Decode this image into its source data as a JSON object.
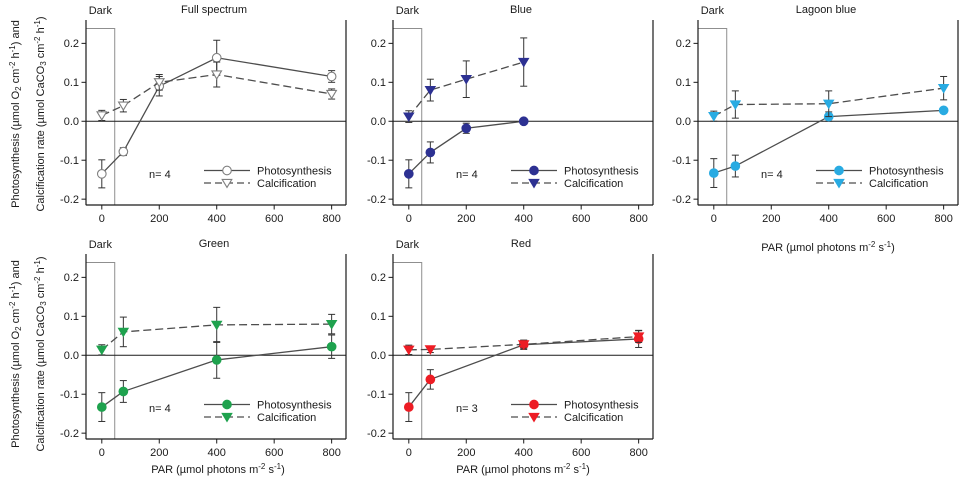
{
  "chart_data": {
    "type": "line",
    "grid": false,
    "x_ticks": [
      0,
      200,
      400,
      600,
      800
    ],
    "y_ticks": [
      "-0.2",
      "-0.1",
      "0.0",
      "0.1",
      "0.2"
    ],
    "xlim": [
      -55,
      850
    ],
    "ylim": [
      -0.215,
      0.26
    ],
    "dark_box": {
      "label": "Dark",
      "x_end": 45
    },
    "colors": {
      "axis": "#1a1a1a",
      "line": "#4d4d4d",
      "error": "#333333",
      "dark_box": "#8f8f8f",
      "full_spectrum_marker": "#7f7f7f",
      "blue": "#2d3192",
      "lagoon_blue": "#29abe2",
      "green": "#1fa24e",
      "red": "#ed1c24"
    },
    "xlabel_parts": [
      {
        "t": "PAR (µmol photons m"
      },
      {
        "t": "-2",
        "sup": true
      },
      {
        "t": " s"
      },
      {
        "t": "-1",
        "sup": true
      },
      {
        "t": ")"
      }
    ],
    "ylabel_line1_parts": [
      {
        "t": "Photosynthesis (µmol O"
      },
      {
        "t": "2",
        "sub": true
      },
      {
        "t": " cm"
      },
      {
        "t": "-2",
        "sup": true
      },
      {
        "t": " h"
      },
      {
        "t": "-1",
        "sup": true
      },
      {
        "t": ") and"
      }
    ],
    "ylabel_line2_parts": [
      {
        "t": "Calcification rate (µmol CaCO"
      },
      {
        "t": "3",
        "sub": true
      },
      {
        "t": " cm"
      },
      {
        "t": "-2",
        "sup": true
      },
      {
        "t": " h"
      },
      {
        "t": "-1",
        "sup": true
      },
      {
        "t": ")"
      }
    ],
    "panels": [
      {
        "key": "full-spectrum",
        "title": "Full spectrum",
        "n_label": "n= 4",
        "marker_fill": "#ffffff",
        "marker_stroke": "#7f7f7f",
        "show_xlabel": false,
        "series": [
          {
            "name": "Photosynthesis",
            "marker": "circle",
            "dash": false,
            "x": [
              0,
              75,
              200,
              400,
              800
            ],
            "y": [
              -0.135,
              -0.078,
              0.09,
              0.163,
              0.115
            ],
            "err": [
              0.036,
              0.01,
              0.025,
              0.045,
              0.015
            ]
          },
          {
            "name": "Calcification",
            "marker": "triangle-down",
            "dash": true,
            "x": [
              0,
              75,
              200,
              400,
              800
            ],
            "y": [
              0.015,
              0.04,
              0.1,
              0.12,
              0.07
            ],
            "err": [
              0.013,
              0.016,
              0.02,
              0.032,
              0.013
            ]
          }
        ]
      },
      {
        "key": "blue",
        "title": "Blue",
        "n_label": "n= 4",
        "marker_fill": "#2d3192",
        "marker_stroke": "#2d3192",
        "show_xlabel": false,
        "series": [
          {
            "name": "Photosynthesis",
            "marker": "circle",
            "dash": false,
            "x": [
              0,
              75,
              200,
              400
            ],
            "y": [
              -0.135,
              -0.08,
              -0.018,
              0.0
            ],
            "err": [
              0.036,
              0.027,
              0.013,
              0
            ]
          },
          {
            "name": "Calcification",
            "marker": "triangle-down",
            "dash": true,
            "x": [
              0,
              75,
              200,
              400
            ],
            "y": [
              0.012,
              0.08,
              0.108,
              0.152
            ],
            "err": [
              0.015,
              0.028,
              0.047,
              0.062
            ]
          }
        ]
      },
      {
        "key": "lagoon-blue",
        "title": "Lagoon blue",
        "n_label": "n= 4",
        "marker_fill": "#29abe2",
        "marker_stroke": "#29abe2",
        "show_xlabel": true,
        "series": [
          {
            "name": "Photosynthesis",
            "marker": "circle",
            "dash": false,
            "x": [
              0,
              75,
              400,
              800
            ],
            "y": [
              -0.133,
              -0.115,
              0.012,
              0.028
            ],
            "err": [
              0.037,
              0.028,
              0.012,
              0
            ]
          },
          {
            "name": "Calcification",
            "marker": "triangle-down",
            "dash": true,
            "x": [
              0,
              75,
              400,
              800
            ],
            "y": [
              0.013,
              0.043,
              0.045,
              0.085
            ],
            "err": [
              0.013,
              0.035,
              0.033,
              0.03
            ]
          }
        ]
      },
      {
        "key": "green",
        "title": "Green",
        "n_label": "n= 4",
        "marker_fill": "#1fa24e",
        "marker_stroke": "#1fa24e",
        "show_xlabel": true,
        "series": [
          {
            "name": "Photosynthesis",
            "marker": "circle",
            "dash": false,
            "x": [
              0,
              75,
              400,
              800
            ],
            "y": [
              -0.133,
              -0.093,
              -0.012,
              0.022
            ],
            "err": [
              0.037,
              0.028,
              0.047,
              0.03
            ]
          },
          {
            "name": "Calcification",
            "marker": "triangle-down",
            "dash": true,
            "x": [
              0,
              75,
              400,
              800
            ],
            "y": [
              0.014,
              0.06,
              0.078,
              0.08
            ],
            "err": [
              0.013,
              0.038,
              0.045,
              0.025
            ]
          }
        ]
      },
      {
        "key": "red",
        "title": "Red",
        "n_label": "n= 3",
        "marker_fill": "#ed1c24",
        "marker_stroke": "#ed1c24",
        "show_xlabel": true,
        "series": [
          {
            "name": "Photosynthesis",
            "marker": "circle",
            "dash": false,
            "x": [
              0,
              75,
              400,
              800
            ],
            "y": [
              -0.133,
              -0.062,
              0.027,
              0.042
            ],
            "err": [
              0.037,
              0.025,
              0.012,
              0.022
            ]
          },
          {
            "name": "Calcification",
            "marker": "triangle-down",
            "dash": true,
            "x": [
              0,
              75,
              400,
              800
            ],
            "y": [
              0.014,
              0.015,
              0.028,
              0.048
            ],
            "err": [
              0.012,
              0.008,
              0.01,
              0.015
            ]
          }
        ]
      }
    ]
  }
}
